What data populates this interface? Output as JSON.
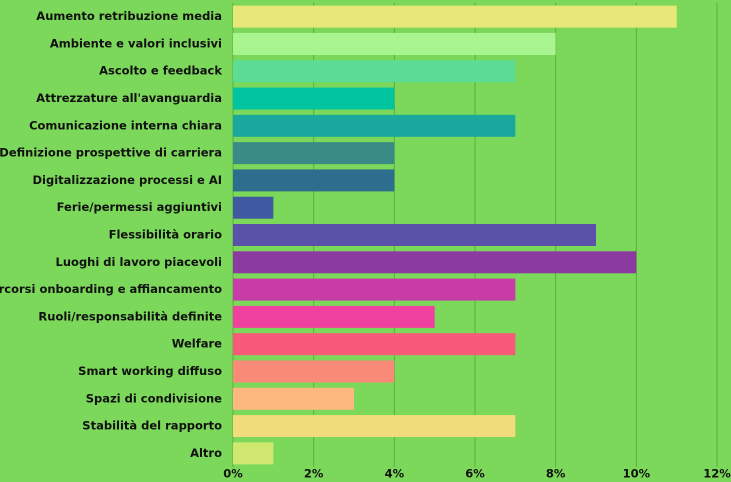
{
  "chart_data": {
    "type": "barh",
    "categories": [
      "Aumento retribuzione media",
      "Ambiente e valori inclusivi",
      "Ascolto e feedback",
      "Attrezzature all'avanguardia",
      "Comunicazione interna chiara",
      "Definizione prospettive di carriera",
      "Digitalizzazione processi e AI",
      "Ferie/permessi aggiuntivi",
      "Flessibilità orario",
      "Luoghi di lavoro piacevoli",
      "Percorsi onboarding e affiancamento",
      "Ruoli/responsabilità definite",
      "Welfare",
      "Smart working diffuso",
      "Spazi di condivisione",
      "Stabilità del rapporto",
      "Altro"
    ],
    "values": [
      11,
      8,
      7,
      4,
      7,
      4,
      4,
      1,
      9,
      10,
      7,
      5,
      7,
      4,
      3,
      7,
      1
    ],
    "colors": [
      "#e8e87a",
      "#a8f590",
      "#5ddc96",
      "#00c4a0",
      "#1aa89e",
      "#3a8a86",
      "#2d6e8e",
      "#3f5aa0",
      "#5a52a8",
      "#8a3aa0",
      "#c83ca8",
      "#f040a0",
      "#f85a7a",
      "#fa8a78",
      "#fdb880",
      "#f0dc7a",
      "#d0e870"
    ],
    "xlim": [
      0,
      12
    ],
    "xticks": [
      {
        "value": 0,
        "label": "0%"
      },
      {
        "value": 2,
        "label": "2%"
      },
      {
        "value": 4,
        "label": "4%"
      },
      {
        "value": 6,
        "label": "6%"
      },
      {
        "value": 8,
        "label": "8%"
      },
      {
        "value": 10,
        "label": "10%"
      },
      {
        "value": 12,
        "label": "12%"
      }
    ],
    "grid": true
  }
}
